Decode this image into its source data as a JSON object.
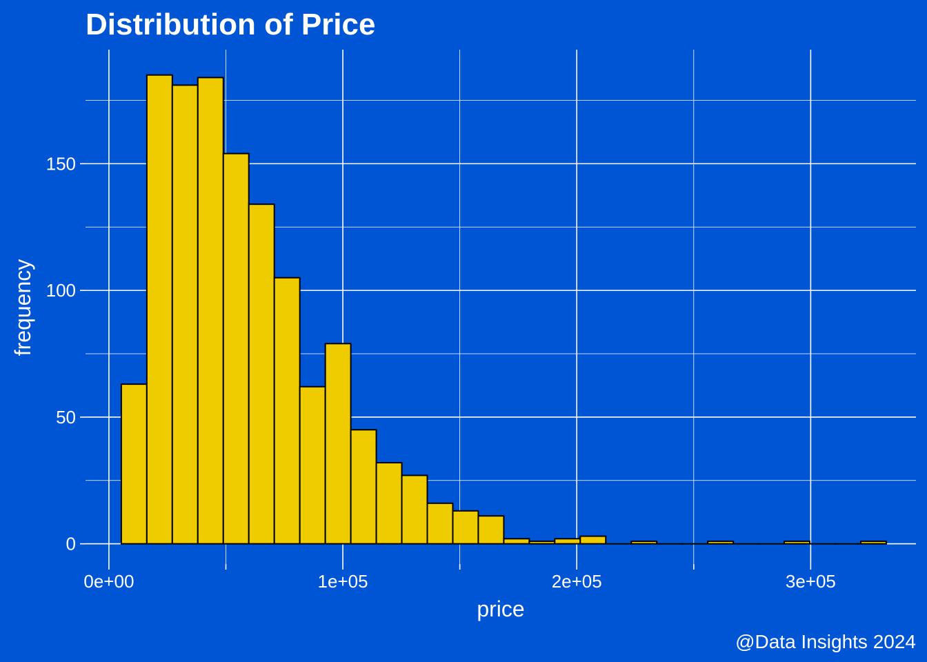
{
  "chart_data": {
    "type": "bar",
    "title": "Distribution of Price",
    "xlabel": "price",
    "ylabel": "frequency",
    "caption": "@Data Insights 2024",
    "xlim": [
      -10000,
      345000
    ],
    "ylim": [
      -8,
      195
    ],
    "x_ticks": [
      {
        "value": 0,
        "label": "0e+00"
      },
      {
        "value": 100000,
        "label": "1e+05"
      },
      {
        "value": 200000,
        "label": "2e+05"
      },
      {
        "value": 300000,
        "label": "3e+05"
      }
    ],
    "x_minor_ticks": [
      50000,
      150000,
      250000
    ],
    "y_ticks": [
      {
        "value": 0,
        "label": "0"
      },
      {
        "value": 50,
        "label": "50"
      },
      {
        "value": 100,
        "label": "100"
      },
      {
        "value": 150,
        "label": "150"
      }
    ],
    "y_minor_ticks": [
      25,
      75,
      125,
      175
    ],
    "grid": true,
    "bin_width": 10900,
    "bin_start": 5300,
    "values": [
      63,
      185,
      181,
      184,
      154,
      134,
      105,
      62,
      79,
      45,
      32,
      27,
      16,
      13,
      11,
      2,
      1,
      2,
      3,
      0,
      1,
      0,
      0,
      1,
      0,
      0,
      1,
      0,
      0,
      1
    ],
    "colors": {
      "background": "#0055D4",
      "bar_fill": "#EECC00",
      "bar_outline": "#000000",
      "grid": "#FFFFFF",
      "text": "#FFFFFF"
    }
  }
}
